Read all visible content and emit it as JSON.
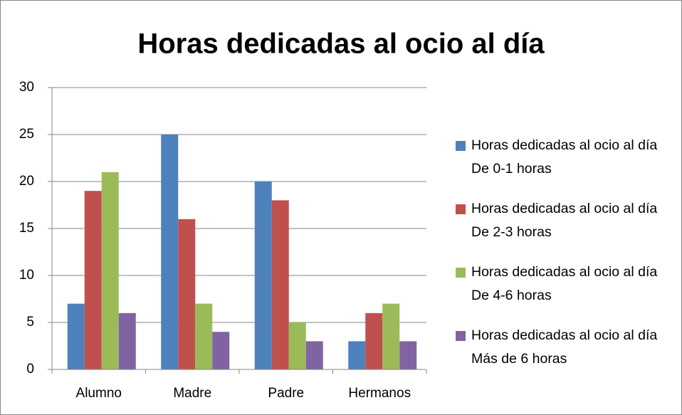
{
  "chart_data": {
    "type": "bar",
    "title": "Horas dedicadas al ocio al día",
    "categories": [
      "Alumno",
      "Madre",
      "Padre",
      "Hermanos"
    ],
    "series": [
      {
        "name": "Horas dedicadas al ocio al día De 0-1 horas",
        "color": "#4f81bd",
        "values": [
          7,
          25,
          20,
          3
        ]
      },
      {
        "name": "Horas dedicadas al ocio al día De 2-3 horas",
        "color": "#c0504d",
        "values": [
          19,
          16,
          18,
          6
        ]
      },
      {
        "name": "Horas dedicadas al ocio al día De 4-6 horas",
        "color": "#9bbb59",
        "values": [
          21,
          7,
          5,
          7
        ]
      },
      {
        "name": "Horas dedicadas al ocio al día Más de 6 horas",
        "color": "#8064a2",
        "values": [
          6,
          4,
          3,
          3
        ]
      }
    ],
    "ylim": [
      0,
      30
    ],
    "yticks": [
      0,
      5,
      10,
      15,
      20,
      25,
      30
    ],
    "grid": true,
    "legend": "right"
  }
}
